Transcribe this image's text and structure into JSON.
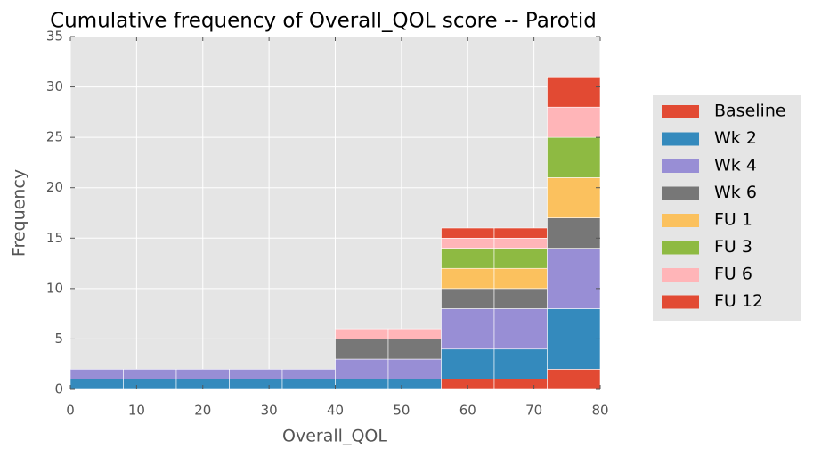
{
  "chart_data": {
    "type": "histogram",
    "title": "Cumulative frequency of Overall_QOL score -- Parotid",
    "xlabel": "Overall_QOL",
    "ylabel": "Frequency",
    "bins": [
      0,
      8,
      16,
      24,
      32,
      40,
      48,
      56,
      64,
      72,
      80
    ],
    "stacked": true,
    "series": [
      {
        "name": "Baseline",
        "color": "#E24A33",
        "values": [
          0,
          0,
          0,
          0,
          0,
          0,
          0,
          1,
          1,
          2
        ]
      },
      {
        "name": "Wk 2",
        "color": "#348ABD",
        "values": [
          1,
          1,
          1,
          1,
          1,
          1,
          1,
          3,
          3,
          6
        ]
      },
      {
        "name": "Wk 4",
        "color": "#988ED5",
        "values": [
          1,
          1,
          1,
          1,
          1,
          2,
          2,
          4,
          4,
          6
        ]
      },
      {
        "name": "Wk 6",
        "color": "#777777",
        "values": [
          0,
          0,
          0,
          0,
          0,
          2,
          2,
          2,
          2,
          3
        ]
      },
      {
        "name": "FU 1",
        "color": "#FBC15E",
        "values": [
          0,
          0,
          0,
          0,
          0,
          0,
          0,
          2,
          2,
          4
        ]
      },
      {
        "name": "FU 3",
        "color": "#8EBA42",
        "values": [
          0,
          0,
          0,
          0,
          0,
          0,
          0,
          2,
          2,
          4
        ]
      },
      {
        "name": "FU 6",
        "color": "#FFB5B8",
        "values": [
          0,
          0,
          0,
          0,
          0,
          1,
          1,
          1,
          1,
          3
        ]
      },
      {
        "name": "FU 12",
        "color": "#E24A33",
        "values": [
          0,
          0,
          0,
          0,
          0,
          0,
          0,
          1,
          1,
          3
        ]
      }
    ],
    "xlim": [
      0,
      80
    ],
    "xticks": [
      0,
      10,
      20,
      30,
      40,
      50,
      60,
      70,
      80
    ],
    "ylim": [
      0,
      35
    ],
    "yticks": [
      0,
      5,
      10,
      15,
      20,
      25,
      30,
      35
    ],
    "grid": true,
    "legend": "right"
  }
}
